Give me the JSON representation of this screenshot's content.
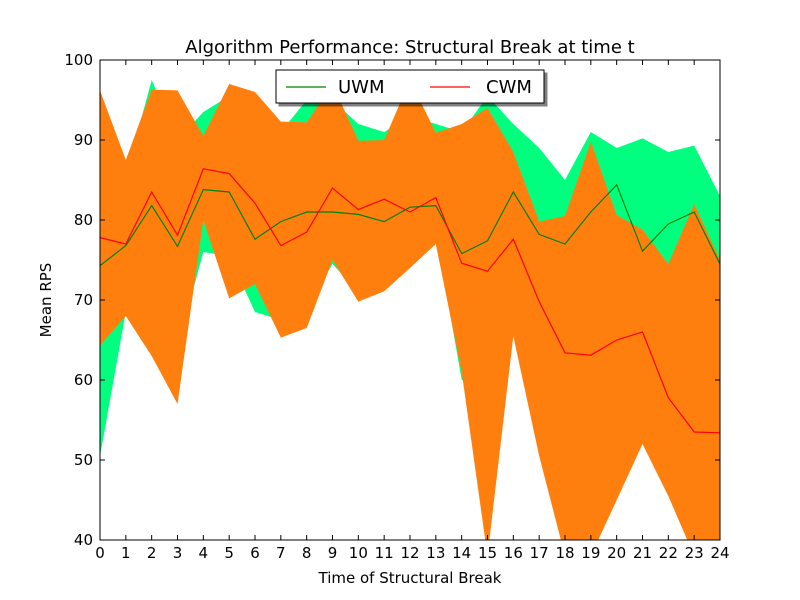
{
  "chart_data": {
    "type": "line",
    "title": "Algorithm Performance: Structural Break at time t",
    "xlabel": "Time of Structural Break",
    "ylabel": "Mean RPS",
    "xlim": [
      0,
      24
    ],
    "ylim": [
      40,
      100
    ],
    "x_ticks": [
      "0",
      "1",
      "2",
      "3",
      "4",
      "5",
      "6",
      "7",
      "8",
      "9",
      "10",
      "11",
      "12",
      "13",
      "14",
      "15",
      "16",
      "17",
      "18",
      "19",
      "20",
      "21",
      "22",
      "23",
      "24"
    ],
    "y_ticks": [
      "40",
      "50",
      "60",
      "70",
      "80",
      "90",
      "100"
    ],
    "grid": false,
    "legend": {
      "placement": "top-center",
      "entries": [
        "UWM",
        "CWM"
      ]
    },
    "x": [
      0,
      1,
      2,
      3,
      4,
      5,
      6,
      7,
      8,
      9,
      10,
      11,
      12,
      13,
      14,
      15,
      16,
      17,
      18,
      19,
      20,
      21,
      22,
      23,
      24
    ],
    "series": [
      {
        "name": "UWM",
        "color": "#008000",
        "band_color": "#00ff7f",
        "values": [
          74.3,
          76.8,
          81.8,
          76.7,
          83.8,
          83.5,
          77.6,
          79.8,
          81.0,
          81.0,
          80.7,
          79.8,
          81.6,
          81.8,
          75.8,
          77.4,
          83.5,
          78.2,
          77.0,
          81.0,
          84.4,
          76.1,
          79.5,
          81.0,
          74.5
        ],
        "upper": [
          84.0,
          85.5,
          97.5,
          90.0,
          93.5,
          95.5,
          93.0,
          91.0,
          95.0,
          95.0,
          92.0,
          91.0,
          93.0,
          92.0,
          91.0,
          95.5,
          92.0,
          89.0,
          85.0,
          91.0,
          89.0,
          90.2,
          88.5,
          89.3,
          83.0
        ],
        "lower": [
          50.5,
          68.5,
          66.0,
          64.0,
          76.0,
          75.5,
          68.5,
          67.5,
          69.0,
          74.5,
          71.0,
          73.5,
          75.5,
          78.5,
          60.0,
          59.0,
          75.0,
          67.0,
          69.0,
          71.0,
          78.0,
          63.0,
          70.0,
          72.0,
          66.0
        ]
      },
      {
        "name": "CWM",
        "color": "#ff0000",
        "band_color": "#ff7f0e",
        "values": [
          77.8,
          77.0,
          83.5,
          78.1,
          86.4,
          85.8,
          82.1,
          76.8,
          78.5,
          84.0,
          81.3,
          82.6,
          81.0,
          82.8,
          74.6,
          73.6,
          77.6,
          69.8,
          63.4,
          63.1,
          65.0,
          66.0,
          57.8,
          53.5,
          53.4
        ],
        "upper": [
          96.2,
          87.5,
          96.3,
          96.2,
          90.5,
          97.0,
          96.0,
          92.3,
          92.2,
          97.0,
          89.9,
          90.0,
          97.5,
          90.9,
          92.0,
          94.0,
          88.5,
          79.8,
          80.5,
          89.8,
          80.6,
          78.8,
          74.5,
          82.0,
          75.0
        ],
        "lower": [
          64.3,
          68.0,
          63.0,
          57.0,
          80.0,
          70.2,
          72.0,
          65.3,
          66.5,
          75.0,
          69.8,
          71.1,
          74.0,
          77.0,
          61.0,
          38.0,
          65.5,
          50.5,
          38.0,
          38.0,
          45.0,
          52.0,
          45.5,
          38.0,
          38.0
        ]
      }
    ]
  }
}
